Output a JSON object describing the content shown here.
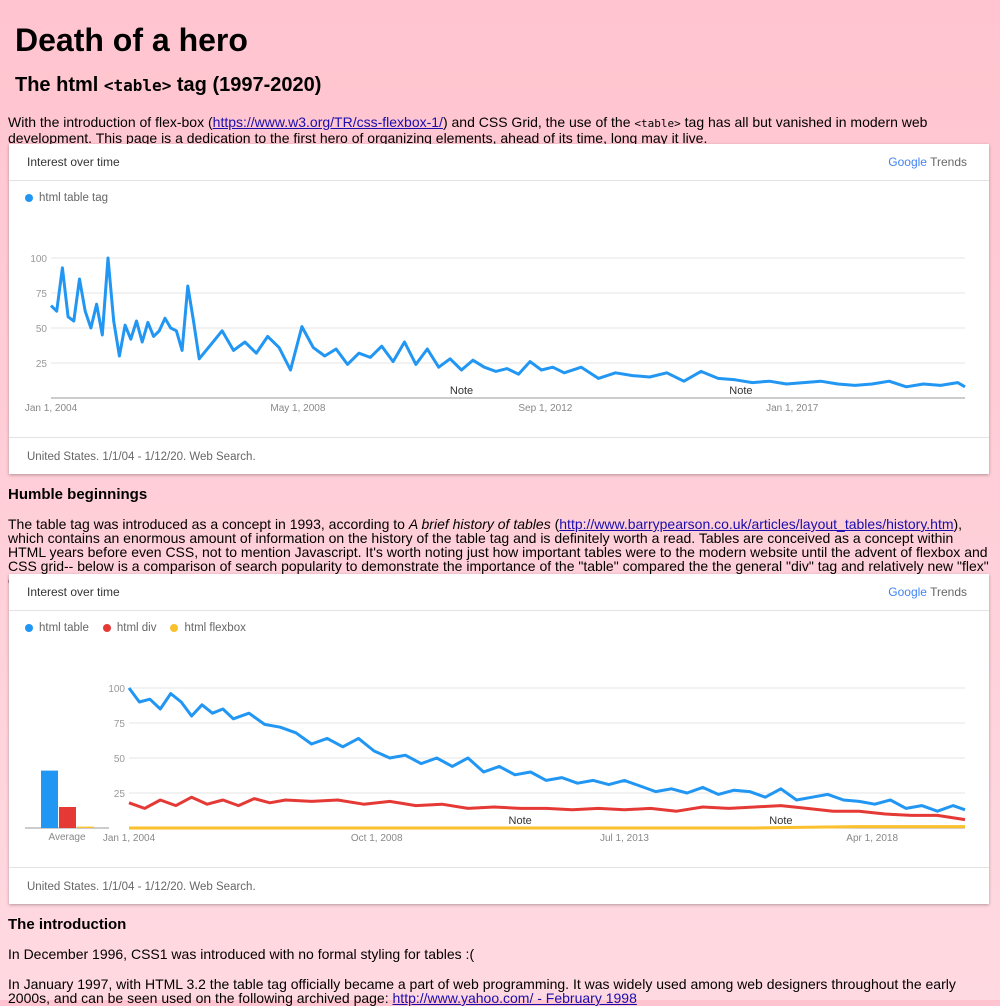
{
  "page": {
    "title": "Death of a hero",
    "subtitle_pre": "The html ",
    "subtitle_code": "<table>",
    "subtitle_post": " tag (1997-2020)"
  },
  "intro": {
    "text1": "With the introduction of flex-box (",
    "link1": "https://www.w3.org/TR/css-flexbox-1/",
    "text2": ") and CSS Grid, the use of the ",
    "code": "<table>",
    "text3": " tag has all but vanished in modern web development. This page is a dedication to the first hero of organizing elements, ahead of its time, long may it live."
  },
  "chart1": {
    "header": "Interest over time",
    "logo_google": "Google",
    "logo_trends": "Trends",
    "footer": "United States. 1/1/04 - 1/12/20. Web Search.",
    "legend": [
      {
        "label": "html table tag",
        "color": "#2196f3"
      }
    ]
  },
  "section1": {
    "heading": "Humble beginnings",
    "text1": "The table tag was introduced as a concept in 1993, according to ",
    "italic": "A brief history of tables",
    "text2": " (",
    "link": "http://www.barrypearson.co.uk/articles/layout_tables/history.htm",
    "text3": "), which contains an enormous amount of information on the history of the table tag and is definitely worth a read. Tables are conceived as a concept within HTML years before even CSS, not to mention Javascript. It's worth noting just how important tables were to the modern website until the advent of flexbox and CSS grid-- below is a comparison of search popularity to demonstrate the importance of the \"table\" compared the the general \"div\" tag and relatively new \"flex\" concept:"
  },
  "chart2": {
    "header": "Interest over time",
    "logo_google": "Google",
    "logo_trends": "Trends",
    "footer": "United States. 1/1/04 - 1/12/20. Web Search.",
    "legend": [
      {
        "label": "html table",
        "color": "#2196f3"
      },
      {
        "label": "html div",
        "color": "#e53935"
      },
      {
        "label": "html flexbox",
        "color": "#fbc02d"
      }
    ]
  },
  "section2": {
    "heading": "The introduction",
    "p1": "In December 1996, CSS1 was introduced with no formal styling for tables :(",
    "p2_text": "In January 1997, with HTML 3.2 the table tag officially became a part of web programming. It was widely used among web designers throughout the early 2000s, and can be seen used on the following archived page: ",
    "p2_link": "http://www.yahoo.com/ - February 1998"
  },
  "chart_data": [
    {
      "type": "line",
      "title": "Interest over time",
      "xlabel": "",
      "ylabel": "",
      "ylim": [
        0,
        100
      ],
      "yticks": [
        25,
        50,
        75,
        100
      ],
      "x_tick_labels": [
        "Jan 1, 2004",
        "May 1, 2008",
        "Sep 1, 2012",
        "Jan 1, 2017"
      ],
      "x_tick_positions": [
        2004.0,
        2008.33,
        2012.67,
        2017.0
      ],
      "x_range": [
        2004.0,
        2020.03
      ],
      "annotations": [
        {
          "label": "Note",
          "x": 2011.2
        },
        {
          "label": "Note",
          "x": 2016.1
        }
      ],
      "legend_position": "top-left",
      "grid": true,
      "series": [
        {
          "name": "html table tag",
          "color": "#2196f3",
          "x": [
            2004.0,
            2004.1,
            2004.2,
            2004.3,
            2004.4,
            2004.5,
            2004.6,
            2004.7,
            2004.8,
            2004.9,
            2005.0,
            2005.1,
            2005.2,
            2005.3,
            2005.4,
            2005.5,
            2005.6,
            2005.7,
            2005.8,
            2005.9,
            2006.0,
            2006.1,
            2006.2,
            2006.3,
            2006.4,
            2006.5,
            2006.6,
            2006.8,
            2007.0,
            2007.2,
            2007.4,
            2007.6,
            2007.8,
            2008.0,
            2008.2,
            2008.4,
            2008.6,
            2008.8,
            2009.0,
            2009.2,
            2009.4,
            2009.6,
            2009.8,
            2010.0,
            2010.2,
            2010.4,
            2010.6,
            2010.8,
            2011.0,
            2011.2,
            2011.4,
            2011.6,
            2011.8,
            2012.0,
            2012.2,
            2012.4,
            2012.6,
            2012.8,
            2013.0,
            2013.3,
            2013.6,
            2013.9,
            2014.2,
            2014.5,
            2014.8,
            2015.1,
            2015.4,
            2015.7,
            2016.0,
            2016.3,
            2016.6,
            2016.9,
            2017.2,
            2017.5,
            2017.8,
            2018.1,
            2018.4,
            2018.7,
            2019.0,
            2019.3,
            2019.6,
            2019.9,
            2020.03
          ],
          "values": [
            66,
            62,
            93,
            58,
            55,
            85,
            62,
            50,
            67,
            45,
            100,
            55,
            30,
            52,
            42,
            55,
            40,
            54,
            44,
            48,
            57,
            50,
            48,
            34,
            80,
            55,
            28,
            38,
            48,
            34,
            40,
            32,
            44,
            36,
            20,
            51,
            36,
            30,
            35,
            24,
            32,
            29,
            37,
            26,
            40,
            24,
            35,
            22,
            28,
            20,
            27,
            22,
            19,
            21,
            17,
            26,
            20,
            22,
            18,
            22,
            14,
            18,
            16,
            15,
            18,
            12,
            19,
            14,
            13,
            11,
            12,
            10,
            11,
            12,
            10,
            9,
            10,
            12,
            8,
            10,
            9,
            11,
            8
          ]
        }
      ]
    },
    {
      "type": "line",
      "title": "Interest over time",
      "xlabel": "",
      "ylabel": "",
      "ylim": [
        0,
        100
      ],
      "yticks": [
        25,
        50,
        75,
        100
      ],
      "x_tick_labels": [
        "Jan 1, 2004",
        "Oct 1, 2008",
        "Jul 1, 2013",
        "Apr 1, 2018"
      ],
      "x_tick_positions": [
        2004.0,
        2008.75,
        2013.5,
        2018.25
      ],
      "x_range": [
        2004.0,
        2020.03
      ],
      "annotations": [
        {
          "label": "Note",
          "x": 2011.5
        },
        {
          "label": "Note",
          "x": 2016.5
        }
      ],
      "legend_position": "top-left",
      "grid": true,
      "average_bars": {
        "label": "Average",
        "values": [
          41,
          15,
          1
        ]
      },
      "series": [
        {
          "name": "html table",
          "color": "#2196f3",
          "x": [
            2004.0,
            2004.2,
            2004.4,
            2004.6,
            2004.8,
            2005.0,
            2005.2,
            2005.4,
            2005.6,
            2005.8,
            2006.0,
            2006.3,
            2006.6,
            2006.9,
            2007.2,
            2007.5,
            2007.8,
            2008.1,
            2008.4,
            2008.7,
            2009.0,
            2009.3,
            2009.6,
            2009.9,
            2010.2,
            2010.5,
            2010.8,
            2011.1,
            2011.4,
            2011.7,
            2012.0,
            2012.3,
            2012.6,
            2012.9,
            2013.2,
            2013.5,
            2013.8,
            2014.1,
            2014.4,
            2014.7,
            2015.0,
            2015.3,
            2015.6,
            2015.9,
            2016.2,
            2016.5,
            2016.8,
            2017.1,
            2017.4,
            2017.7,
            2018.0,
            2018.3,
            2018.6,
            2018.9,
            2019.2,
            2019.5,
            2019.8,
            2020.03
          ],
          "values": [
            100,
            90,
            92,
            85,
            96,
            90,
            80,
            88,
            82,
            85,
            78,
            82,
            74,
            72,
            68,
            60,
            64,
            58,
            64,
            55,
            50,
            52,
            46,
            50,
            44,
            50,
            40,
            44,
            38,
            40,
            34,
            36,
            32,
            34,
            31,
            34,
            30,
            26,
            28,
            25,
            29,
            24,
            27,
            26,
            22,
            28,
            20,
            22,
            24,
            20,
            19,
            17,
            20,
            14,
            16,
            12,
            16,
            13
          ]
        },
        {
          "name": "html div",
          "color": "#e53935",
          "x": [
            2004.0,
            2004.3,
            2004.6,
            2004.9,
            2005.2,
            2005.5,
            2005.8,
            2006.1,
            2006.4,
            2006.7,
            2007.0,
            2007.5,
            2008.0,
            2008.5,
            2009.0,
            2009.5,
            2010.0,
            2010.5,
            2011.0,
            2011.5,
            2012.0,
            2012.5,
            2013.0,
            2013.5,
            2014.0,
            2014.5,
            2015.0,
            2015.5,
            2016.0,
            2016.5,
            2017.0,
            2017.5,
            2018.0,
            2018.5,
            2019.0,
            2019.5,
            2020.03
          ],
          "values": [
            18,
            14,
            20,
            16,
            22,
            17,
            20,
            16,
            21,
            18,
            20,
            19,
            20,
            17,
            19,
            16,
            17,
            14,
            15,
            14,
            14,
            13,
            14,
            13,
            14,
            12,
            15,
            14,
            15,
            16,
            14,
            12,
            12,
            10,
            9,
            9,
            6
          ]
        },
        {
          "name": "html flexbox",
          "color": "#fbc02d",
          "x": [
            2004.0,
            2012.0,
            2016.0,
            2017.0,
            2018.0,
            2019.0,
            2020.03
          ],
          "values": [
            0,
            0,
            0,
            0.5,
            1,
            1,
            1
          ]
        }
      ]
    }
  ]
}
